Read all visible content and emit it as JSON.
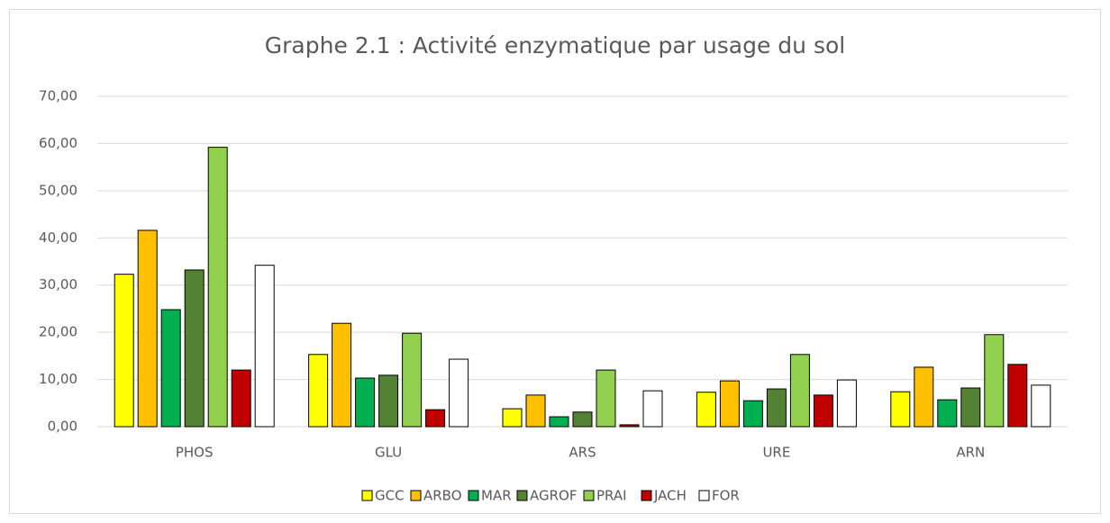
{
  "chart_data": {
    "type": "bar",
    "title": "Graphe 2.1 : Activité enzymatique par usage du sol",
    "categories": [
      "PHOS",
      "GLU",
      "ARS",
      "URE",
      "ARN"
    ],
    "series": [
      {
        "name": "GCC",
        "color": "#ffff00",
        "values": [
          32.3,
          15.3,
          3.8,
          7.3,
          7.4
        ]
      },
      {
        "name": "ARBO",
        "color": "#ffc000",
        "values": [
          41.6,
          21.9,
          6.7,
          9.7,
          12.6
        ]
      },
      {
        "name": "MAR",
        "color": "#00b050",
        "values": [
          24.8,
          10.3,
          2.1,
          5.5,
          5.7
        ]
      },
      {
        "name": "AGROF",
        "color": "#548235",
        "values": [
          33.2,
          10.9,
          3.1,
          8.0,
          8.2
        ]
      },
      {
        "name": "PRAI",
        "color": "#92d050",
        "values": [
          59.2,
          19.8,
          12.0,
          15.3,
          19.5
        ]
      },
      {
        "name": "JACH",
        "color": "#c00000",
        "values": [
          12.0,
          3.6,
          0.4,
          6.7,
          13.2
        ]
      },
      {
        "name": "FOR",
        "color": "#ffffff",
        "values": [
          34.2,
          14.3,
          7.6,
          9.9,
          8.8
        ]
      }
    ],
    "ylim": [
      0,
      70
    ],
    "yticks": [
      {
        "value": 0,
        "label": "0,00"
      },
      {
        "value": 10,
        "label": "10,00"
      },
      {
        "value": 20,
        "label": "20,00"
      },
      {
        "value": 30,
        "label": "30,00"
      },
      {
        "value": 40,
        "label": "40,00"
      },
      {
        "value": 50,
        "label": "50,00"
      },
      {
        "value": 60,
        "label": "60,00"
      },
      {
        "value": 70,
        "label": "70,00"
      }
    ],
    "grid": true,
    "legend": "bottom"
  }
}
